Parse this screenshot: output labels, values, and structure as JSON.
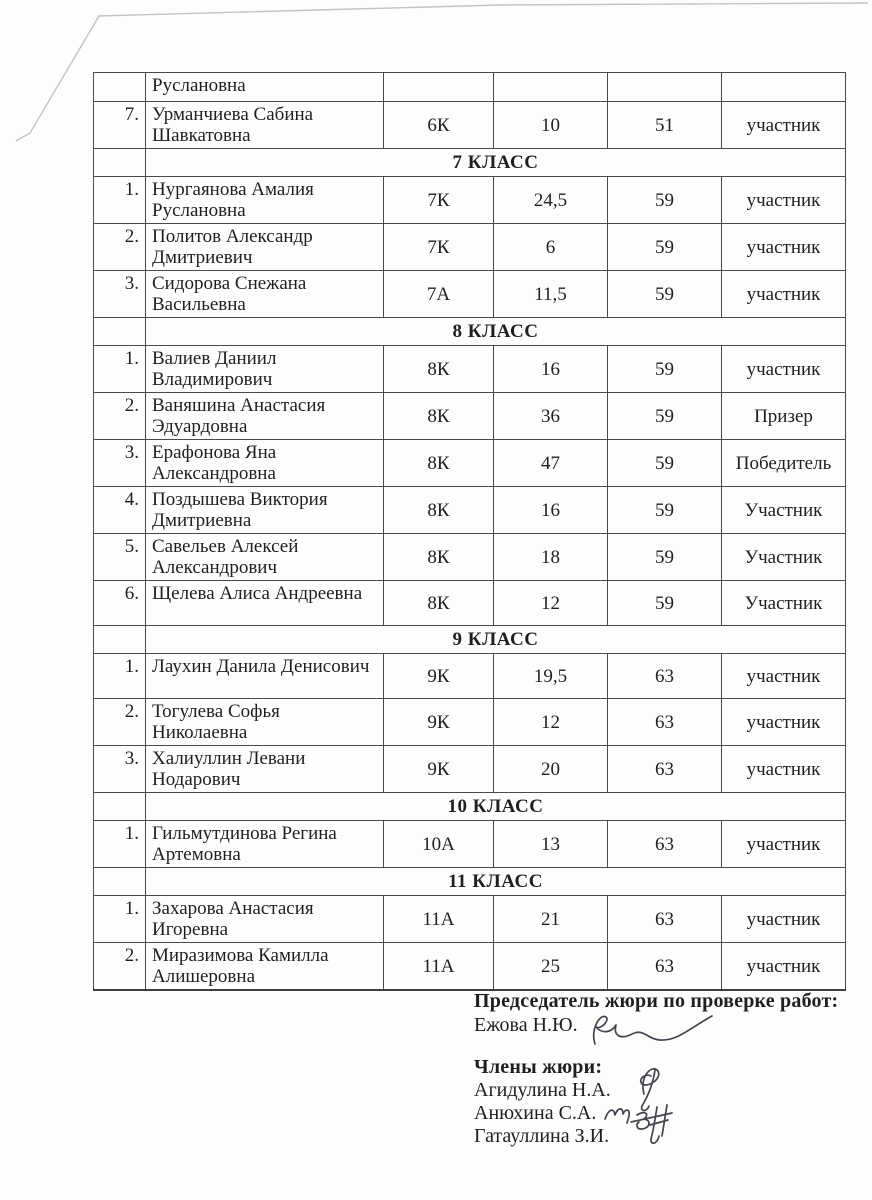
{
  "table": {
    "sections": [
      {
        "header": "",
        "rows": [
          {
            "num": "",
            "name": "Руслановна",
            "class": "",
            "score": "",
            "max": "",
            "status": ""
          },
          {
            "num": "7.",
            "name": "Урманчиева Сабина Шавкатовна",
            "class": "6К",
            "score": "10",
            "max": "51",
            "status": "участник"
          }
        ]
      },
      {
        "header": "7 КЛАСС",
        "rows": [
          {
            "num": "1.",
            "name": "Нургаянова Амалия Руслановна",
            "class": "7К",
            "score": "24,5",
            "max": "59",
            "status": "участник"
          },
          {
            "num": "2.",
            "name": "Политов Александр Дмитриевич",
            "class": "7К",
            "score": "6",
            "max": "59",
            "status": "участник"
          },
          {
            "num": "3.",
            "name": "Сидорова Снежана Васильевна",
            "class": "7А",
            "score": "11,5",
            "max": "59",
            "status": "участник"
          }
        ]
      },
      {
        "header": "8 КЛАСС",
        "rows": [
          {
            "num": "1.",
            "name": "Валиев Даниил Владимирович",
            "class": "8К",
            "score": "16",
            "max": "59",
            "status": "участник"
          },
          {
            "num": "2.",
            "name": "Ваняшина Анастасия Эдуардовна",
            "class": "8К",
            "score": "36",
            "max": "59",
            "status": "Призер"
          },
          {
            "num": "3.",
            "name": "Ерафонова Яна Александровна",
            "class": "8К",
            "score": "47",
            "max": "59",
            "status": "Победитель"
          },
          {
            "num": "4.",
            "name": "Поздышева Виктория Дмитриевна",
            "class": "8К",
            "score": "16",
            "max": "59",
            "status": "Участник"
          },
          {
            "num": "5.",
            "name": "Савельев Алексей Александрович",
            "class": "8К",
            "score": "18",
            "max": "59",
            "status": "Участник"
          },
          {
            "num": "6.",
            "name": "Щелева Алиса Андреевна",
            "class": "8К",
            "score": "12",
            "max": "59",
            "status": "Участник"
          }
        ]
      },
      {
        "header": "9 КЛАСС",
        "rows": [
          {
            "num": "1.",
            "name": "Лаухин Данила Денисович",
            "class": "9К",
            "score": "19,5",
            "max": "63",
            "status": "участник"
          },
          {
            "num": "2.",
            "name": "Тогулева Софья Николаевна",
            "class": "9К",
            "score": "12",
            "max": "63",
            "status": "участник"
          },
          {
            "num": "3.",
            "name": "Халиуллин Левани Нодарович",
            "class": "9К",
            "score": "20",
            "max": "63",
            "status": "участник"
          }
        ]
      },
      {
        "header": "10 КЛАСС",
        "rows": [
          {
            "num": "1.",
            "name": "Гильмутдинова Регина Артемовна",
            "class": "10А",
            "score": "13",
            "max": "63",
            "status": "участник"
          }
        ]
      },
      {
        "header": "11 КЛАСС",
        "rows": [
          {
            "num": "1.",
            "name": "Захарова Анастасия Игоревна",
            "class": "11А",
            "score": "21",
            "max": "63",
            "status": "участник"
          },
          {
            "num": "2.",
            "name": "Миразимова Камилла Алишеровна",
            "class": "11А",
            "score": "25",
            "max": "63",
            "status": "участник"
          }
        ]
      }
    ]
  },
  "footer": {
    "chair_label": "Председатель жюри по проверке работ:",
    "chair_name": "Ежова Н.Ю.",
    "members_label": "Члены жюри:",
    "members": [
      "Агидулина Н.А.",
      "Анюхина С.А.",
      "Гатауллина З.И."
    ]
  },
  "colors": {
    "ink": "#1f1f1f",
    "table_border": "#4a4a4a",
    "paper": "#fdfdfb",
    "signature_ink": "#45434f"
  }
}
